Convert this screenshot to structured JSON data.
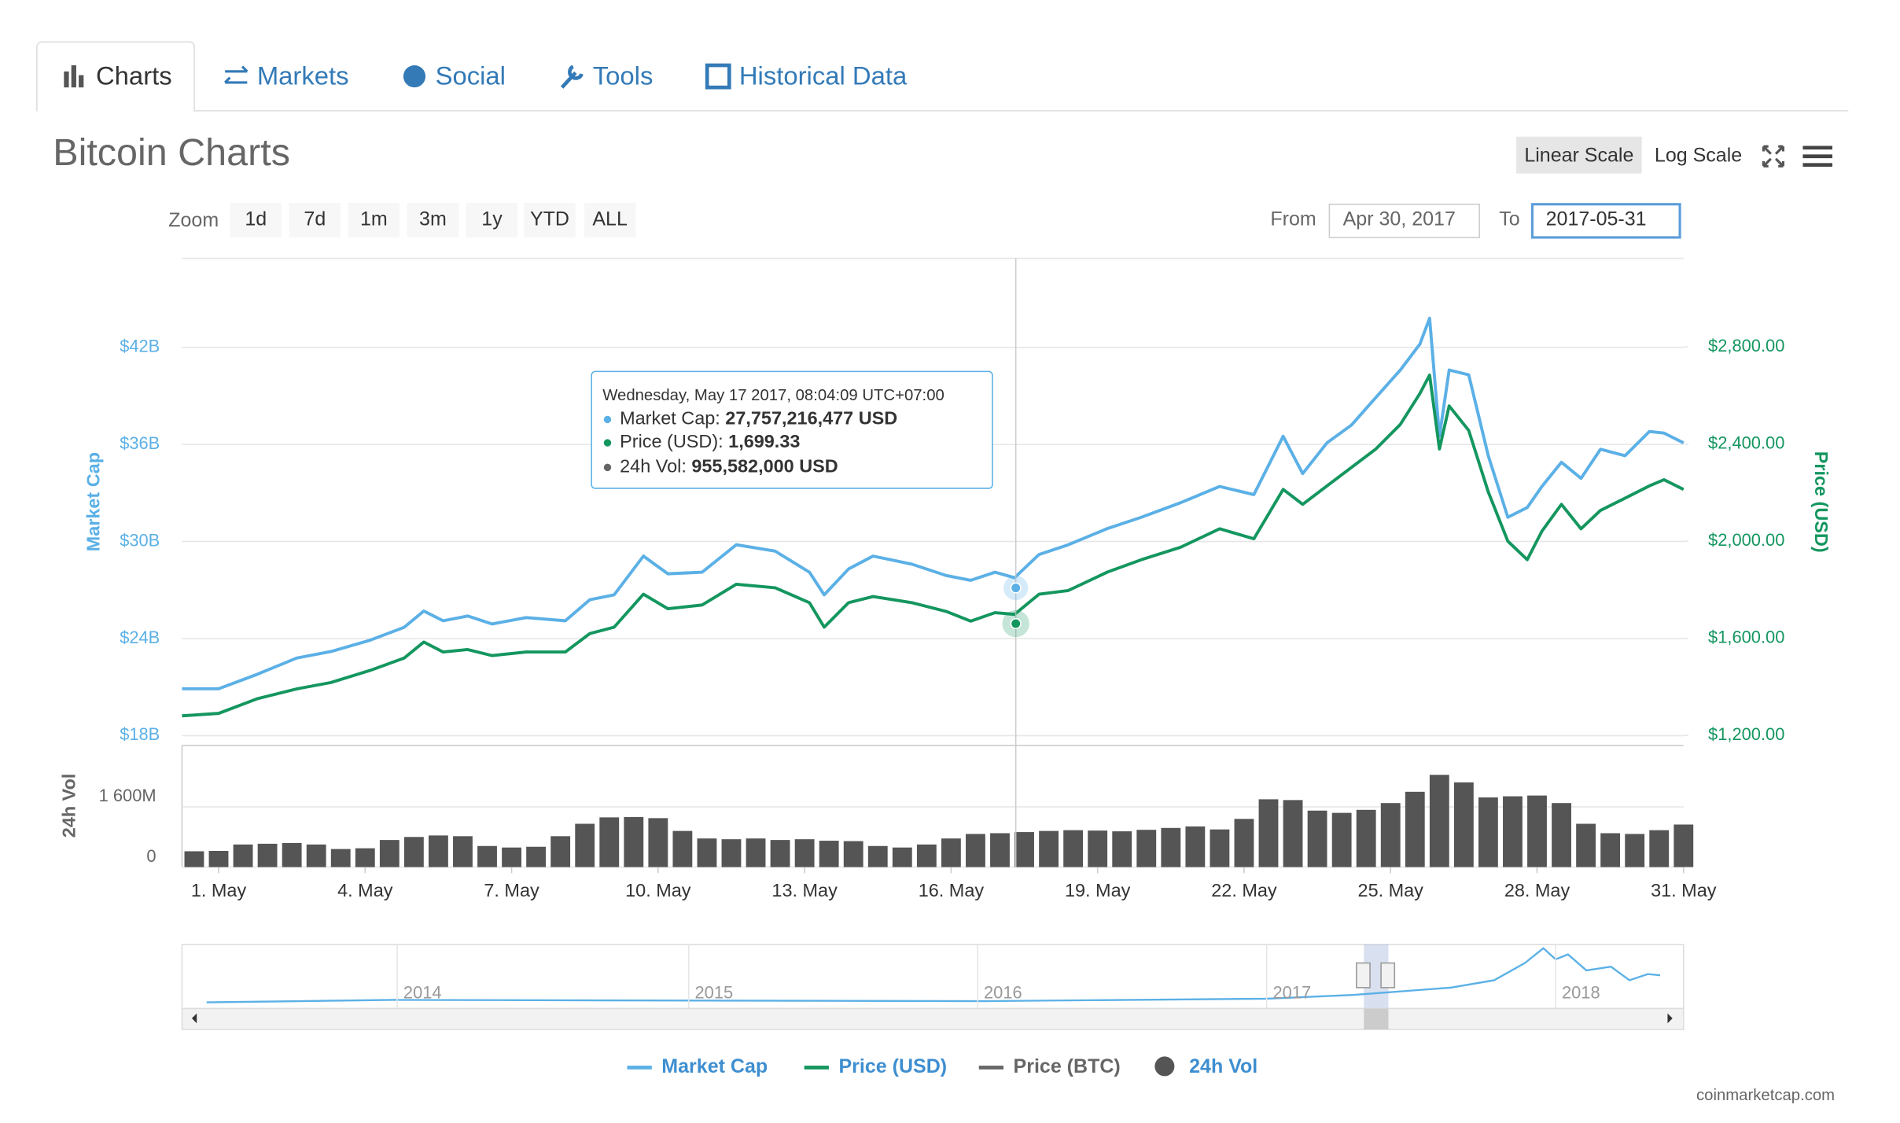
{
  "tabs": [
    "Charts",
    "Markets",
    "Social",
    "Tools",
    "Historical Data"
  ],
  "heading": "Bitcoin Charts",
  "scale_buttons": [
    "Linear Scale",
    "Log Scale"
  ],
  "zoom": {
    "label": "Zoom",
    "buttons": [
      "1d",
      "7d",
      "1m",
      "3m",
      "1y",
      "YTD",
      "ALL"
    ]
  },
  "range": {
    "from_label": "From",
    "from": "Apr 30, 2017",
    "to_label": "To",
    "to": "2017-05-31"
  },
  "tooltip": {
    "title": "Wednesday, May 17 2017, 08:04:09 UTC+07:00",
    "rows": [
      {
        "name": "Market Cap:",
        "value": "27,757,216,477 USD"
      },
      {
        "name": "Price (USD):",
        "value": "1,699.33"
      },
      {
        "name": "24h Vol:",
        "value": "955,582,000 USD"
      }
    ]
  },
  "navigator": {
    "years": [
      "2014",
      "2015",
      "2016",
      "2017",
      "2018"
    ]
  },
  "credit": "coinmarketcap.com",
  "chart_data": [
    {
      "type": "line",
      "y_label": "Market Cap",
      "y2_label": "Price (USD)",
      "x": [
        0.25,
        1,
        1.8,
        2.6,
        3.3,
        4.1,
        4.8,
        5.2,
        5.6,
        6.1,
        6.6,
        7.3,
        8.1,
        8.6,
        9.1,
        9.7,
        10.2,
        10.9,
        11.6,
        12.4,
        13.1,
        13.4,
        13.9,
        14.4,
        15.2,
        15.9,
        16.4,
        16.9,
        17.3,
        17.8,
        18.4,
        19.2,
        19.9,
        20.7,
        21.5,
        22.2,
        22.8,
        23.2,
        23.7,
        24.2,
        24.7,
        25.2,
        25.6,
        25.8,
        26.0,
        26.2,
        26.6,
        27.0,
        27.4,
        27.8,
        28.1,
        28.5,
        28.9,
        29.3,
        29.8,
        30.3,
        30.6,
        31.0
      ],
      "xlim": [
        0.25,
        31
      ],
      "series": [
        {
          "name": "Market Cap",
          "color": "#5bb0e6",
          "axis": "y",
          "values": [
            20.9,
            20.9,
            21.8,
            22.8,
            23.2,
            23.9,
            24.7,
            25.7,
            25.1,
            25.4,
            24.9,
            25.3,
            25.1,
            26.4,
            26.7,
            29.1,
            28.0,
            28.1,
            29.8,
            29.4,
            28.1,
            26.7,
            28.3,
            29.1,
            28.6,
            27.9,
            27.6,
            28.1,
            27.76,
            29.2,
            29.8,
            30.8,
            31.5,
            32.4,
            33.4,
            32.9,
            36.5,
            34.2,
            36.1,
            37.2,
            38.9,
            40.6,
            42.2,
            43.8,
            36.5,
            40.6,
            40.3,
            35.3,
            31.5,
            32.1,
            33.4,
            34.9,
            33.9,
            35.7,
            35.3,
            36.8,
            36.7,
            36.1
          ]
        },
        {
          "name": "Price (USD)",
          "color": "#14965f",
          "axis": "y2",
          "values": [
            1281,
            1291,
            1352,
            1392,
            1418,
            1468,
            1519,
            1585,
            1544,
            1554,
            1529,
            1544,
            1544,
            1620,
            1646,
            1782,
            1722,
            1737,
            1823,
            1808,
            1747,
            1646,
            1747,
            1772,
            1747,
            1711,
            1671,
            1706,
            1699,
            1782,
            1797,
            1873,
            1924,
            1975,
            2051,
            2010,
            2213,
            2152,
            2228,
            2304,
            2380,
            2481,
            2608,
            2684,
            2380,
            2557,
            2456,
            2203,
            2000,
            1924,
            2041,
            2152,
            2051,
            2127,
            2177,
            2228,
            2253,
            2213
          ]
        }
      ],
      "hidden_series": [
        {
          "name": "Price (BTC)",
          "color": "#666666"
        }
      ],
      "ylim": [
        17.4,
        47.5
      ],
      "yticks": [
        {
          "value": 18,
          "label": "$18B"
        },
        {
          "value": 24,
          "label": "$24B"
        },
        {
          "value": 30,
          "label": "$30B"
        },
        {
          "value": 36,
          "label": "$36B"
        },
        {
          "value": 42,
          "label": "$42B"
        }
      ],
      "y2lim": [
        1159.5,
        3164.6
      ],
      "y2ticks": [
        {
          "value": 1200,
          "label": "$1,200.00"
        },
        {
          "value": 1600,
          "label": "$1,600.00"
        },
        {
          "value": 2000,
          "label": "$2,000.00"
        },
        {
          "value": 2400,
          "label": "$2,400.00"
        },
        {
          "value": 2800,
          "label": "$2,800.00"
        }
      ],
      "grid": true
    },
    {
      "type": "bar",
      "y_label": "24h Vol",
      "x": [
        0.5,
        1,
        1.5,
        2,
        2.5,
        3,
        3.5,
        4,
        4.5,
        5,
        5.5,
        6,
        6.5,
        7,
        7.5,
        8,
        8.5,
        9,
        9.5,
        10,
        10.5,
        11,
        11.5,
        12,
        12.5,
        13,
        13.5,
        14,
        14.5,
        15,
        15.5,
        16,
        16.5,
        17,
        17.5,
        18,
        18.5,
        19,
        19.5,
        20,
        20.5,
        21,
        21.5,
        22,
        22.5,
        23,
        23.5,
        24,
        24.5,
        25,
        25.5,
        26,
        26.5,
        27,
        27.5,
        28,
        28.5,
        29,
        29.5,
        30,
        30.5,
        31
      ],
      "xlim": [
        0.25,
        31
      ],
      "xticks": [
        {
          "value": 1,
          "label": "1. May"
        },
        {
          "value": 4,
          "label": "4. May"
        },
        {
          "value": 7,
          "label": "7. May"
        },
        {
          "value": 10,
          "label": "10. May"
        },
        {
          "value": 13,
          "label": "13. May"
        },
        {
          "value": 16,
          "label": "16. May"
        },
        {
          "value": 19,
          "label": "19. May"
        },
        {
          "value": 22,
          "label": "22. May"
        },
        {
          "value": 25,
          "label": "25. May"
        },
        {
          "value": 28,
          "label": "28. May"
        },
        {
          "value": 31,
          "label": "31. May"
        }
      ],
      "series": [
        {
          "name": "24h Vol",
          "color": "#555555",
          "values": [
            420,
            430,
            600,
            620,
            640,
            600,
            480,
            500,
            720,
            800,
            840,
            820,
            560,
            520,
            540,
            820,
            1150,
            1320,
            1330,
            1300,
            960,
            760,
            740,
            760,
            720,
            740,
            700,
            690,
            560,
            520,
            600,
            760,
            880,
            900,
            930,
            960,
            980,
            970,
            950,
            990,
            1040,
            1080,
            1000,
            1280,
            1800,
            1780,
            1500,
            1440,
            1520,
            1700,
            2000,
            2450,
            2250,
            1850,
            1880,
            1900,
            1700,
            1150,
            900,
            880,
            980,
            1130
          ]
        }
      ],
      "ylim": [
        0,
        3233
      ],
      "yticks": [
        0,
        {
          "value": 1600,
          "label": "1 600M"
        }
      ],
      "grid": true
    }
  ]
}
